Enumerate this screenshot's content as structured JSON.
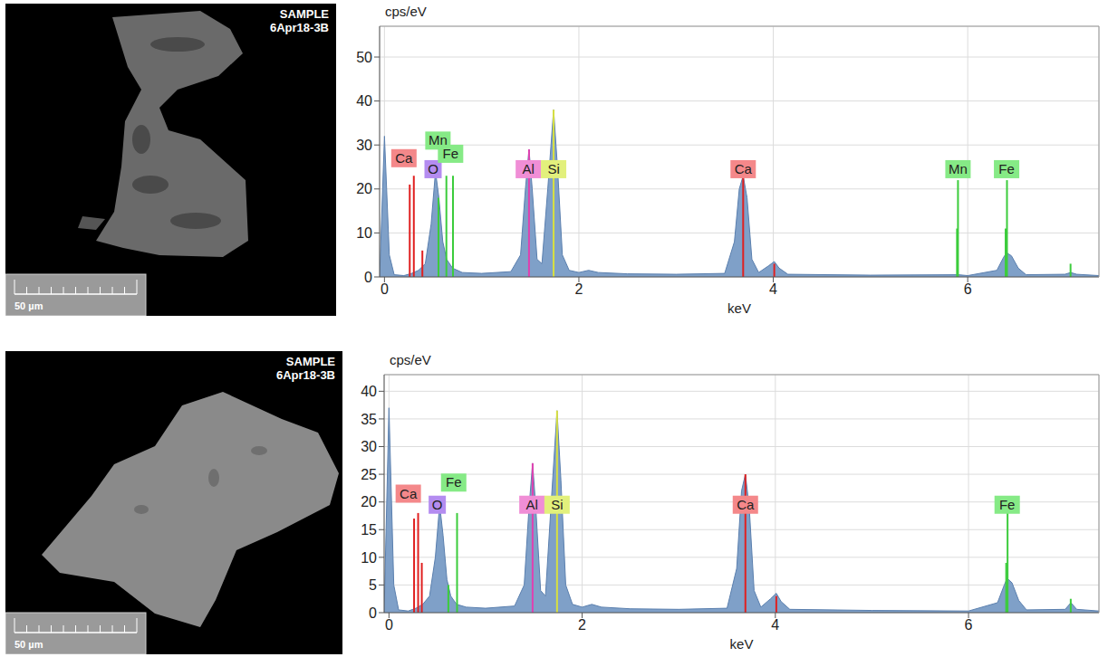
{
  "images": [
    {
      "text_top": "SAMPLE",
      "text_id": "6Apr18-3B",
      "scale_bar": "50 µm"
    },
    {
      "text_top": "SAMPLE",
      "text_id": "6Apr18-3B",
      "scale_bar": "50 µm"
    }
  ],
  "chart_data": [
    {
      "type": "area",
      "y_label": "cps/eV",
      "x_label": "keV",
      "color": "#7fa0c8",
      "xlim": [
        -0.05,
        7.35
      ],
      "xticks": [
        0,
        2,
        4,
        6
      ],
      "ylim": [
        0,
        57
      ],
      "yticks": [
        0,
        10,
        20,
        30,
        40,
        50
      ],
      "grid": true,
      "x": [
        -0.05,
        0,
        0.05,
        0.1,
        0.2,
        0.28,
        0.35,
        0.42,
        0.48,
        0.525,
        0.56,
        0.6,
        0.64,
        0.7,
        0.8,
        1.0,
        1.3,
        1.4,
        1.45,
        1.487,
        1.52,
        1.57,
        1.62,
        1.68,
        1.74,
        1.78,
        1.83,
        1.9,
        2.0,
        2.1,
        2.2,
        2.5,
        3.0,
        3.5,
        3.6,
        3.65,
        3.69,
        3.73,
        3.78,
        3.85,
        3.95,
        4.01,
        4.06,
        4.15,
        5.0,
        5.9,
        6.0,
        6.3,
        6.37,
        6.4,
        6.45,
        6.52,
        6.6,
        7.0,
        7.06,
        7.12,
        7.35
      ],
      "values": [
        0,
        32,
        5,
        0.5,
        0.3,
        0.8,
        1.5,
        3,
        12,
        24,
        18,
        8,
        4,
        2,
        1,
        0.8,
        1.2,
        5,
        20,
        29,
        20,
        4,
        3,
        20,
        38,
        25,
        5,
        1.5,
        1,
        1.5,
        1,
        0.7,
        0.6,
        0.8,
        8,
        20,
        23,
        18,
        4,
        1,
        2.5,
        3.5,
        2,
        0.6,
        0.4,
        0.5,
        0.3,
        1.5,
        4.5,
        5.5,
        4.8,
        2,
        0.5,
        0.6,
        1,
        0.6,
        0.3
      ],
      "markers": [
        {
          "x": 0.26,
          "height": 21,
          "color": "#e02020"
        },
        {
          "x": 0.302,
          "height": 23,
          "color": "#e02020"
        },
        {
          "x": 0.39,
          "height": 6,
          "color": "#e02020"
        },
        {
          "x": 0.556,
          "height": 18,
          "color": "#3ccc3c"
        },
        {
          "x": 0.637,
          "height": 23,
          "color": "#3ccc3c"
        },
        {
          "x": 0.705,
          "height": 23,
          "color": "#3ccc3c"
        },
        {
          "x": 1.487,
          "height": 29,
          "color": "#e040b0"
        },
        {
          "x": 1.74,
          "height": 38,
          "color": "#d8e040"
        },
        {
          "x": 3.69,
          "height": 23,
          "color": "#e02020"
        },
        {
          "x": 4.01,
          "height": 3,
          "color": "#e02020"
        },
        {
          "x": 5.89,
          "height": 11,
          "color": "#3ccc3c"
        },
        {
          "x": 5.9,
          "height": 22,
          "color": "#3ccc3c"
        },
        {
          "x": 6.39,
          "height": 11,
          "color": "#3ccc3c"
        },
        {
          "x": 6.404,
          "height": 22,
          "color": "#3ccc3c"
        },
        {
          "x": 7.058,
          "height": 3,
          "color": "#3ccc3c"
        }
      ],
      "annotations": [
        {
          "text": "Ca",
          "x": 0.2,
          "y": 27,
          "color": "#f4888a"
        },
        {
          "text": "O",
          "x": 0.5,
          "y": 24.5,
          "color": "#b48cf0"
        },
        {
          "text": "Mn",
          "x": 0.55,
          "y": 31,
          "color": "#86ea86"
        },
        {
          "text": "Fe",
          "x": 0.68,
          "y": 28,
          "color": "#86ea86"
        },
        {
          "text": "Al",
          "x": 1.48,
          "y": 24.5,
          "color": "#f08ed6"
        },
        {
          "text": "Si",
          "x": 1.74,
          "y": 24.5,
          "color": "#e2f07c"
        },
        {
          "text": "Ca",
          "x": 3.69,
          "y": 24.5,
          "color": "#f4888a"
        },
        {
          "text": "Mn",
          "x": 5.9,
          "y": 24.5,
          "color": "#86ea86"
        },
        {
          "text": "Fe",
          "x": 6.4,
          "y": 24.5,
          "color": "#86ea86"
        }
      ]
    },
    {
      "type": "area",
      "y_label": "cps/eV",
      "x_label": "keV",
      "color": "#7fa0c8",
      "xlim": [
        -0.05,
        7.35
      ],
      "xticks": [
        0,
        2,
        4,
        6
      ],
      "ylim": [
        0,
        43
      ],
      "yticks": [
        0,
        5,
        10,
        15,
        20,
        25,
        30,
        35,
        40
      ],
      "grid": true,
      "x": [
        -0.05,
        0,
        0.05,
        0.1,
        0.2,
        0.28,
        0.35,
        0.42,
        0.48,
        0.525,
        0.56,
        0.6,
        0.64,
        0.7,
        0.8,
        1.0,
        1.3,
        1.4,
        1.45,
        1.487,
        1.52,
        1.57,
        1.62,
        1.68,
        1.74,
        1.78,
        1.83,
        1.9,
        2.0,
        2.1,
        2.2,
        2.5,
        3.0,
        3.5,
        3.6,
        3.65,
        3.69,
        3.73,
        3.78,
        3.85,
        3.95,
        4.01,
        4.06,
        4.15,
        5.0,
        6.0,
        6.3,
        6.37,
        6.4,
        6.45,
        6.52,
        6.6,
        7.0,
        7.06,
        7.12,
        7.35
      ],
      "values": [
        0,
        37,
        5,
        0.5,
        0.3,
        0.8,
        1.5,
        3,
        10,
        19.5,
        14,
        6,
        3,
        1.5,
        1,
        0.8,
        1.2,
        5,
        19,
        27,
        19,
        4,
        3,
        20,
        36.5,
        24,
        5,
        1.5,
        1,
        1.5,
        1,
        0.7,
        0.6,
        0.8,
        8,
        22,
        25,
        19,
        4,
        1,
        2.5,
        3.5,
        2,
        0.6,
        0.4,
        0.3,
        1.8,
        5,
        6.2,
        5.4,
        2.2,
        0.5,
        0.6,
        1.8,
        0.6,
        0.3
      ],
      "markers": [
        {
          "x": 0.26,
          "height": 17,
          "color": "#e02020"
        },
        {
          "x": 0.302,
          "height": 18,
          "color": "#e02020"
        },
        {
          "x": 0.34,
          "height": 9,
          "color": "#e02020"
        },
        {
          "x": 0.615,
          "height": 5,
          "color": "#3ccc3c"
        },
        {
          "x": 0.705,
          "height": 18,
          "color": "#3ccc3c"
        },
        {
          "x": 1.487,
          "height": 27,
          "color": "#e040b0"
        },
        {
          "x": 1.74,
          "height": 36.5,
          "color": "#d8e040"
        },
        {
          "x": 3.69,
          "height": 25,
          "color": "#e02020"
        },
        {
          "x": 4.01,
          "height": 3,
          "color": "#e02020"
        },
        {
          "x": 6.39,
          "height": 9,
          "color": "#3ccc3c"
        },
        {
          "x": 6.404,
          "height": 18,
          "color": "#3ccc3c"
        },
        {
          "x": 7.058,
          "height": 2.5,
          "color": "#3ccc3c"
        }
      ],
      "annotations": [
        {
          "text": "Ca",
          "x": 0.2,
          "y": 21.5,
          "color": "#f4888a"
        },
        {
          "text": "O",
          "x": 0.5,
          "y": 19.5,
          "color": "#b48cf0"
        },
        {
          "text": "Fe",
          "x": 0.67,
          "y": 23.5,
          "color": "#86ea86"
        },
        {
          "text": "Al",
          "x": 1.48,
          "y": 19.5,
          "color": "#f08ed6"
        },
        {
          "text": "Si",
          "x": 1.74,
          "y": 19.5,
          "color": "#e2f07c"
        },
        {
          "text": "Ca",
          "x": 3.69,
          "y": 19.5,
          "color": "#f4888a"
        },
        {
          "text": "Fe",
          "x": 6.4,
          "y": 19.5,
          "color": "#86ea86"
        }
      ]
    }
  ]
}
